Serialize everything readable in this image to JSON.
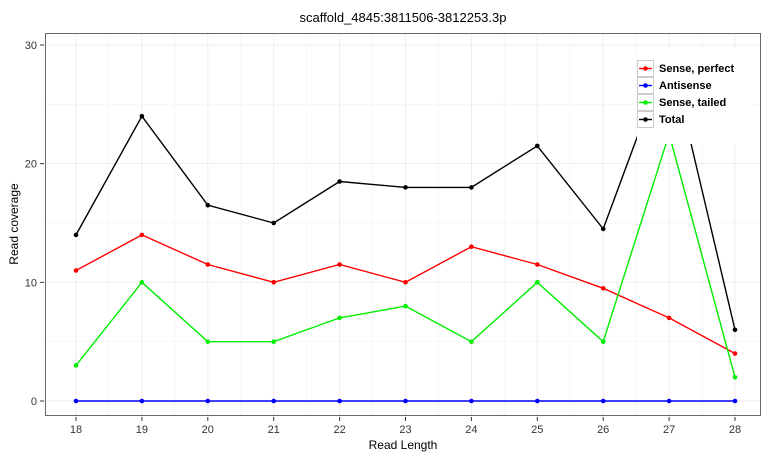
{
  "figure": {
    "title": "scaffold_4845:3811506-3812253.3p"
  },
  "chart_data": {
    "type": "line",
    "title": "scaffold_4845:3811506-3812253.3p",
    "xlabel": "Read Length",
    "ylabel": "Read coverage",
    "x": [
      18,
      19,
      20,
      21,
      22,
      23,
      24,
      25,
      26,
      27,
      28
    ],
    "xlim": [
      17.5,
      28.5
    ],
    "ylim": [
      0,
      30
    ],
    "yticks": [
      0,
      10,
      20,
      30
    ],
    "yticks_minor": [
      5,
      15,
      25
    ],
    "grid": "major+minor",
    "legend_position": "top-right-inside",
    "series": [
      {
        "name": "Sense, perfect",
        "color": "#FF0000",
        "values": [
          11,
          14,
          11.5,
          10,
          11.5,
          10,
          13,
          11.5,
          9.5,
          7,
          4
        ]
      },
      {
        "name": "Antisense",
        "color": "#0000FF",
        "values": [
          0,
          0,
          0,
          0,
          0,
          0,
          0,
          0,
          0,
          0,
          0
        ]
      },
      {
        "name": "Sense, tailed",
        "color": "#00EE00",
        "values": [
          3,
          10,
          5,
          5,
          7,
          8,
          5,
          10,
          5,
          22.5,
          2
        ]
      },
      {
        "name": "Total",
        "color": "#000000",
        "values": [
          14,
          24,
          16.5,
          15,
          18.5,
          18,
          18,
          21.5,
          14.5,
          29.5,
          6
        ]
      }
    ]
  },
  "colors": {
    "panel_background": "#FFFFFF",
    "panel_border": "#666666",
    "grid_major": "#EDEDED",
    "grid_minor": "#F7F7F7",
    "tick_mark": "#333333",
    "tick_label": "#333333",
    "legend_key_border": "#CCCCCC"
  }
}
